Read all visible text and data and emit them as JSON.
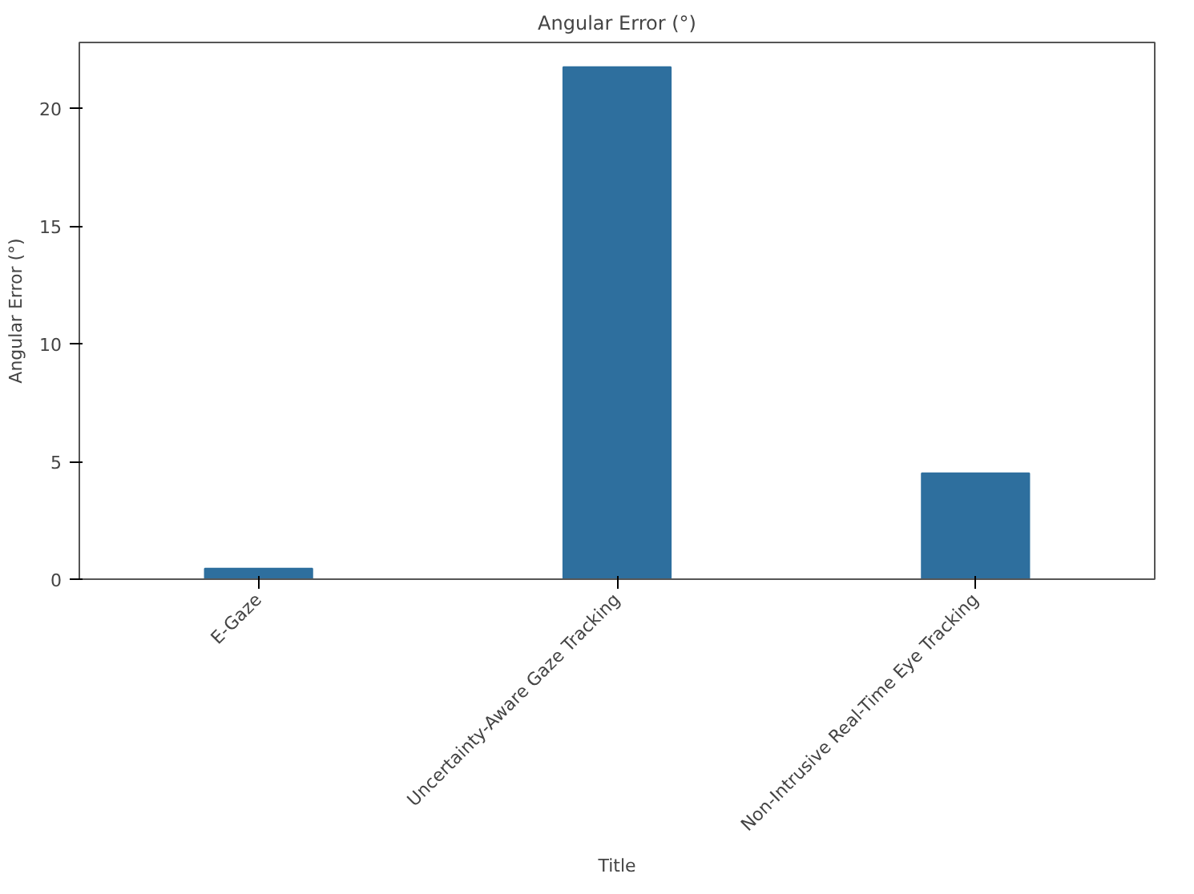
{
  "chart_data": {
    "type": "bar",
    "title": "Angular Error (°)",
    "xlabel": "Title",
    "ylabel": "Angular Error (°)",
    "categories": [
      "E-Gaze",
      "Uncertainty-Aware Gaze Tracking",
      "Non-Intrusive Real-Time Eye Tracking"
    ],
    "values": [
      0.45,
      21.75,
      4.5
    ],
    "color": "#2e6f9e",
    "ylim": [
      0,
      22.8
    ],
    "yticks": [
      0,
      5,
      10,
      15,
      20
    ],
    "grid": false
  }
}
